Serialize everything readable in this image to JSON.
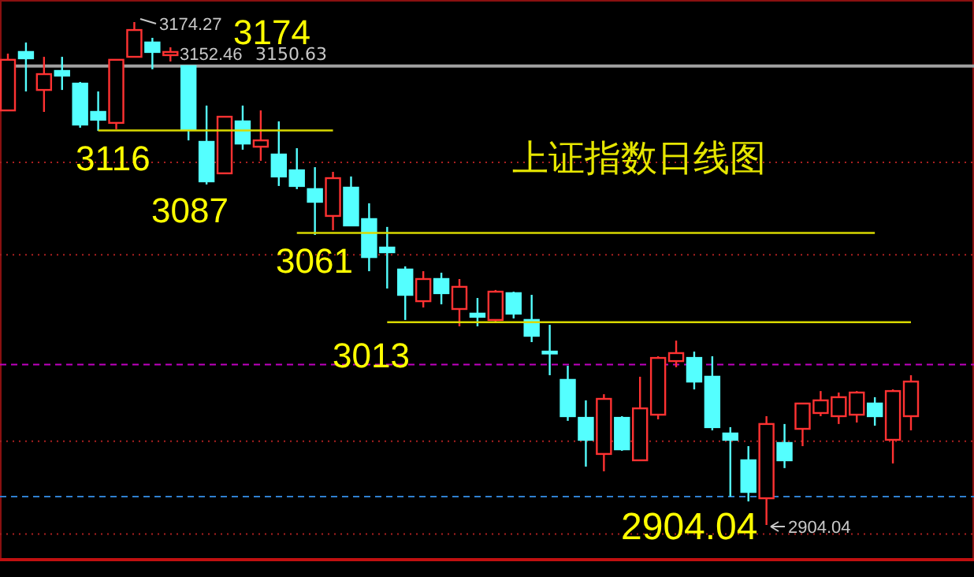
{
  "chart_data": {
    "type": "candlestick",
    "title": "上证指数日线图",
    "categories": [
      null,
      null,
      null,
      null,
      null,
      null,
      null,
      null,
      null,
      null,
      null,
      null,
      null,
      null,
      null,
      null,
      null,
      null,
      null,
      null,
      null,
      null,
      null,
      null,
      null,
      null,
      null,
      null,
      null,
      null,
      null,
      null,
      null,
      null,
      null,
      null,
      null,
      null,
      null,
      null,
      null,
      null,
      null,
      null,
      null,
      null,
      null,
      null,
      null,
      null,
      null
    ],
    "ohlc": [
      [
        3126.8,
        3157.3,
        3126.8,
        3154.0
      ],
      [
        3158.2,
        3163.3,
        3137.0,
        3154.8
      ],
      [
        3137.8,
        3155.6,
        3126.0,
        3146.3
      ],
      [
        3148.0,
        3155.6,
        3137.8,
        3145.5
      ],
      [
        3141.2,
        3142.1,
        3117.5,
        3119.2
      ],
      [
        3126.0,
        3137.0,
        3115.8,
        3121.8
      ],
      [
        3120.1,
        3154.0,
        3116.7,
        3154.0
      ],
      [
        3155.6,
        3174.27,
        3155.6,
        3170.0
      ],
      [
        3163.3,
        3165.8,
        3148.9,
        3158.2
      ],
      [
        3156.5,
        3160.7,
        3153.1,
        3158.2
      ],
      [
        3150.6,
        3150.6,
        3110.7,
        3116.7
      ],
      [
        3109.9,
        3129.4,
        3087.0,
        3088.7
      ],
      [
        3093.0,
        3123.4,
        3093.0,
        3123.4
      ],
      [
        3120.9,
        3129.4,
        3105.7,
        3109.0
      ],
      [
        3107.3,
        3126.8,
        3099.7,
        3110.7
      ],
      [
        3103.1,
        3120.9,
        3086.2,
        3091.3
      ],
      [
        3094.6,
        3106.5,
        3084.5,
        3086.2
      ],
      [
        3084.5,
        3096.3,
        3059.9,
        3077.7
      ],
      [
        3070.1,
        3093.8,
        3062.4,
        3090.4
      ],
      [
        3085.3,
        3091.3,
        3065.0,
        3065.0
      ],
      [
        3068.4,
        3076.9,
        3040.4,
        3048.0
      ],
      [
        3053.1,
        3064.2,
        3031.1,
        3050.6
      ],
      [
        3041.3,
        3043.0,
        3014.2,
        3027.7
      ],
      [
        3024.3,
        3040.4,
        3020.9,
        3036.2
      ],
      [
        3036.2,
        3039.6,
        3022.6,
        3028.6
      ],
      [
        3020.1,
        3036.2,
        3010.8,
        3032.0
      ],
      [
        3017.6,
        3026.0,
        3010.8,
        3015.9
      ],
      [
        3014.2,
        3030.3,
        3012.5,
        3029.4
      ],
      [
        3028.6,
        3029.4,
        3015.0,
        3017.6
      ],
      [
        3014.2,
        3027.7,
        3002.3,
        3005.7
      ],
      [
        2997.2,
        3011.6,
        2984.5,
        2996.4
      ],
      [
        2982.0,
        2989.6,
        2960.0,
        2962.5
      ],
      [
        2961.6,
        2971.0,
        2935.4,
        2949.8
      ],
      [
        2942.2,
        2974.3,
        2932.9,
        2971.8
      ],
      [
        2961.6,
        2962.5,
        2943.9,
        2944.7
      ],
      [
        2938.8,
        2983.7,
        2938.8,
        2966.7
      ],
      [
        2963.3,
        2994.7,
        2960.8,
        2993.8
      ],
      [
        2992.1,
        3003.1,
        2988.8,
        2996.4
      ],
      [
        2993.8,
        2997.2,
        2976.9,
        2981.1
      ],
      [
        2983.7,
        2994.7,
        2954.9,
        2956.6
      ],
      [
        2953.2,
        2956.6,
        2919.3,
        2949.8
      ],
      [
        2938.8,
        2946.4,
        2916.7,
        2921.8
      ],
      [
        2918.4,
        2962.5,
        2904.04,
        2958.3
      ],
      [
        2948.1,
        2958.3,
        2934.6,
        2938.8
      ],
      [
        2955.7,
        2969.3,
        2946.4,
        2969.3
      ],
      [
        2964.2,
        2976.0,
        2962.5,
        2971.0
      ],
      [
        2962.5,
        2975.2,
        2958.3,
        2972.7
      ],
      [
        2963.3,
        2976.0,
        2959.1,
        2975.2
      ],
      [
        2969.3,
        2972.7,
        2957.4,
        2962.5
      ],
      [
        2949.8,
        2976.9,
        2937.1,
        2976.0
      ],
      [
        2962.5,
        2984.5,
        2954.9,
        2981.1
      ]
    ],
    "colors": [
      "#ff3232",
      "#54ffff",
      "#ff3232",
      "#54ffff",
      "#54ffff",
      "#54ffff",
      "#ff3232",
      "#ff3232",
      "#54ffff",
      "#ff3232",
      "#54ffff",
      "#54ffff",
      "#ff3232",
      "#54ffff",
      "#ff3232",
      "#54ffff",
      "#54ffff",
      "#54ffff",
      "#ff3232",
      "#54ffff",
      "#54ffff",
      "#54ffff",
      "#54ffff",
      "#ff3232",
      "#54ffff",
      "#ff3232",
      "#54ffff",
      "#ff3232",
      "#54ffff",
      "#54ffff",
      "#54ffff",
      "#54ffff",
      "#54ffff",
      "#ff3232",
      "#54ffff",
      "#ff3232",
      "#ff3232",
      "#ff3232",
      "#54ffff",
      "#54ffff",
      "#54ffff",
      "#54ffff",
      "#ff3232",
      "#54ffff",
      "#ff3232",
      "#ff3232",
      "#ff3232",
      "#ff3232",
      "#54ffff",
      "#ff3232",
      "#ff3232"
    ],
    "series": [
      {
        "type": "line",
        "color": "#d8d800",
        "values": [
          null,
          null,
          null,
          null,
          null,
          3116,
          3116,
          3116,
          3116,
          3116,
          3116,
          3116,
          3116,
          3116,
          3116,
          3116,
          3116,
          3116,
          3116,
          null,
          null,
          null,
          null,
          null,
          null,
          null,
          null,
          null,
          null,
          null,
          null,
          null,
          null,
          null,
          null,
          null,
          null,
          null,
          null,
          null,
          null,
          null,
          null,
          null,
          null,
          null,
          null,
          null,
          null,
          null,
          null
        ]
      },
      {
        "type": "line",
        "color": "#d8d800",
        "values": [
          null,
          null,
          null,
          null,
          null,
          null,
          null,
          null,
          null,
          null,
          null,
          null,
          null,
          null,
          null,
          null,
          3061,
          3061,
          3061,
          3061,
          3061,
          3061,
          3061,
          3061,
          3061,
          3061,
          3061,
          3061,
          3061,
          3061,
          3061,
          3061,
          3061,
          3061,
          3061,
          3061,
          3061,
          3061,
          3061,
          3061,
          3061,
          3061,
          3061,
          3061,
          3061,
          3061,
          3061,
          3061,
          3061,
          null,
          null
        ]
      },
      {
        "type": "line",
        "color": "#d8d800",
        "values": [
          null,
          null,
          null,
          null,
          null,
          null,
          null,
          null,
          null,
          null,
          null,
          null,
          null,
          null,
          null,
          null,
          null,
          null,
          null,
          null,
          null,
          3013,
          3013,
          3013,
          3013,
          3013,
          3013,
          3013,
          3013,
          3013,
          3013,
          3013,
          3013,
          3013,
          3013,
          3013,
          3013,
          3013,
          3013,
          3013,
          3013,
          3013,
          3013,
          3013,
          3013,
          3013,
          3013,
          3013,
          3013,
          3013,
          3013
        ]
      }
    ],
    "ref_lines": [
      {
        "axis": "y",
        "value": 3150.63,
        "label": "3150.63",
        "color": "#a0a0a0",
        "line_style": "solid"
      },
      {
        "axis": "y",
        "value": 3098.9,
        "color": "#aa2020",
        "line_style": "dotted"
      },
      {
        "axis": "y",
        "value": 3049.2,
        "color": "#aa2020",
        "line_style": "dotted"
      },
      {
        "axis": "y",
        "value": 2990.2,
        "color": "#c000c0",
        "line_style": "dashed"
      },
      {
        "axis": "y",
        "value": 2949.0,
        "color": "#aa2020",
        "line_style": "dotted"
      },
      {
        "axis": "y",
        "value": 2919.3,
        "color": "#3080d0",
        "line_style": "dashed"
      },
      {
        "axis": "y",
        "value": 2899.2,
        "color": "#aa2020",
        "line_style": "dotted"
      }
    ],
    "annotations": [
      "3174.27",
      "3152.46",
      "3174",
      "3116",
      "3087",
      "3061",
      "3013",
      "2904.04",
      "2904.04"
    ]
  }
}
